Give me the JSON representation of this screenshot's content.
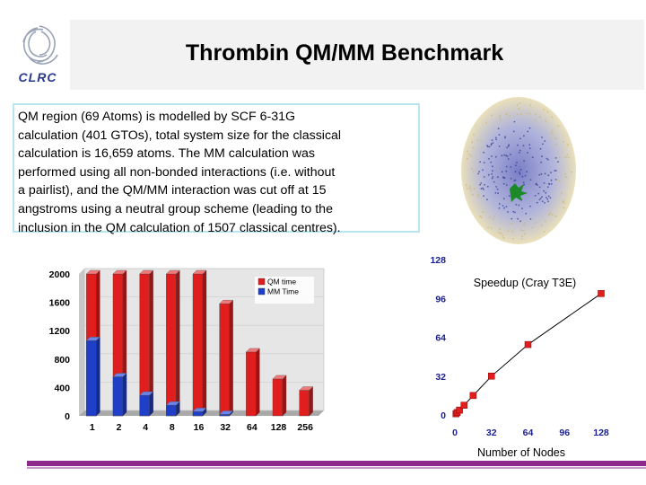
{
  "header": {
    "title": "Thrombin QM/MM Benchmark",
    "logo_text": "CLRC"
  },
  "description": {
    "lines": [
      "QM region (69 Atoms) is modelled by SCF 6-31G",
      "calculation (401 GTOs), total system size for the classical",
      "calculation is 16,659 atoms. The MM calculation was",
      "performed using all non-bonded interactions (i.e. without",
      "a pairlist), and the QM/MM interaction was cut off at 15",
      "angstroms using a neutral group scheme (leading to the",
      "inclusion in the QM calculation of 1507 classical centres)."
    ]
  },
  "colors": {
    "qm": "#e01e1e",
    "mm": "#1f3fc8",
    "speedup_marker": "#e01e1e",
    "accent": "#8b2a8b",
    "desc_border": "#b8e6ef"
  },
  "chart_data": [
    {
      "type": "bar",
      "stacked": false,
      "categories": [
        "1",
        "2",
        "4",
        "8",
        "16",
        "32",
        "64",
        "128",
        "256"
      ],
      "series": [
        {
          "name": "QM time",
          "values": [
            2000,
            2000,
            2000,
            2000,
            2000,
            1580,
            900,
            520,
            360
          ]
        },
        {
          "name": "MM Time",
          "values": [
            1060,
            550,
            290,
            150,
            60,
            20,
            5,
            2,
            1
          ]
        }
      ],
      "yticks": [
        0,
        400,
        800,
        1200,
        1600,
        2000
      ],
      "ylim": [
        0,
        2000
      ],
      "legend": "top-right",
      "title": "",
      "xlabel": "",
      "ylabel": ""
    },
    {
      "type": "scatter",
      "title": "Speedup (Cray T3E)",
      "xlabel": "Number of Nodes",
      "ylabel": "",
      "xticks": [
        0,
        32,
        64,
        96,
        128
      ],
      "yticks": [
        0,
        32,
        64,
        96,
        128
      ],
      "xlim": [
        0,
        128
      ],
      "ylim": [
        0,
        128
      ],
      "x": [
        1,
        2,
        4,
        8,
        16,
        32,
        64,
        128
      ],
      "y": [
        1,
        2,
        4,
        8,
        16,
        32,
        58,
        100
      ]
    }
  ]
}
